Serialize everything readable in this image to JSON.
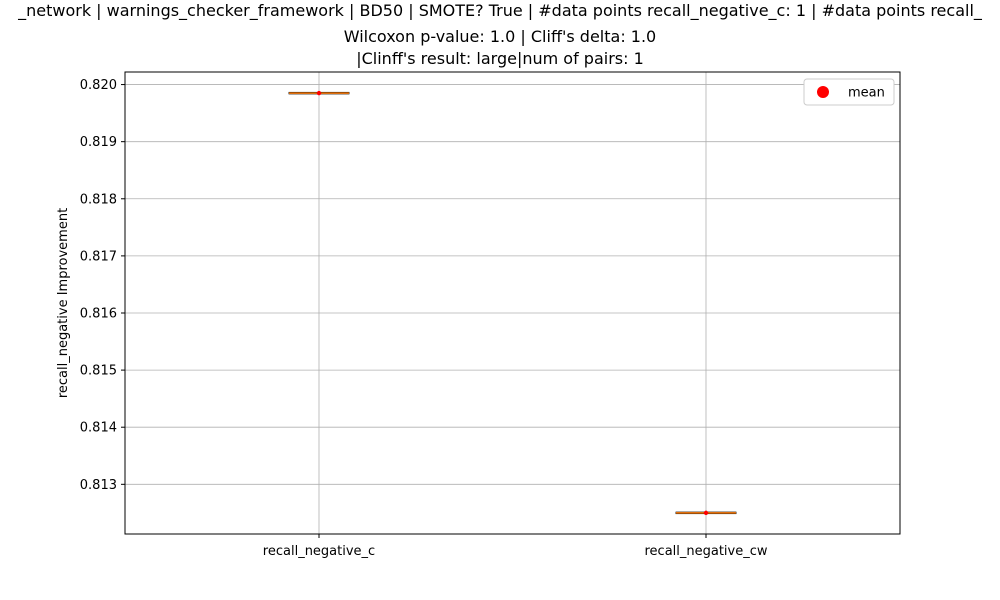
{
  "chart_data": {
    "type": "box",
    "title_lines": [
      "_network | warnings_checker_framework | BD50 | SMOTE? True | #data points recall_negative_c: 1 | #data points recall_",
      "Wilcoxon p-value: 1.0 | Cliff's delta: 1.0",
      "|Clinff's result: large|num of pairs: 1"
    ],
    "xlabel": "",
    "ylabel": "recall_negative Improvement",
    "categories": [
      "recall_negative_c",
      "recall_negative_cw"
    ],
    "values": [
      0.81985,
      0.8125
    ],
    "means": [
      0.81985,
      0.8125
    ],
    "ylim": [
      0.81213,
      0.82022
    ],
    "yticks": [
      "0.813",
      "0.814",
      "0.815",
      "0.816",
      "0.817",
      "0.818",
      "0.819",
      "0.820"
    ],
    "legend": {
      "label": "mean",
      "placement": "top-right"
    },
    "grid": true,
    "colors": {
      "median": "#ff7f0e",
      "mean": "#ff0000",
      "box": "#000000",
      "grid": "#b0b0b0"
    }
  }
}
